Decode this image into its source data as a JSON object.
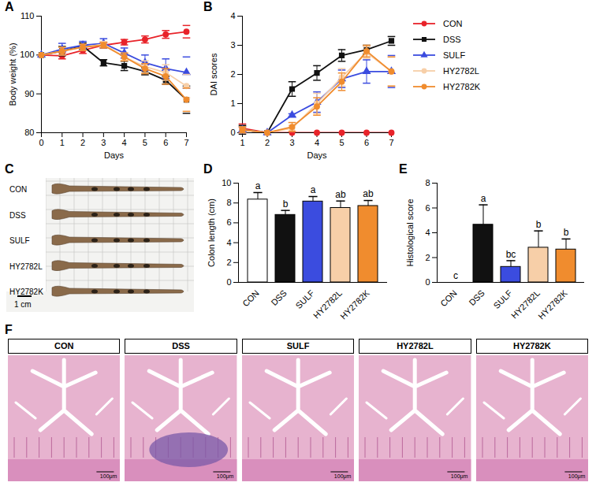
{
  "chart_data": [
    {
      "panel": "A",
      "type": "line",
      "x_label": "Days",
      "y_label": "Body weight (%)",
      "x": [
        0,
        1,
        2,
        3,
        4,
        5,
        6,
        7
      ],
      "xlim": [
        0,
        7
      ],
      "xticks": [
        0,
        1,
        2,
        3,
        4,
        5,
        6,
        7
      ],
      "ylim": [
        80,
        110
      ],
      "yticks": [
        80,
        90,
        100,
        110
      ],
      "series": [
        {
          "name": "CON",
          "color": "#e8232a",
          "marker": "circle",
          "values": [
            100,
            99.8,
            101.2,
            102.5,
            103.3,
            104,
            105.3,
            106
          ],
          "errors": [
            0,
            0.8,
            0.8,
            0.7,
            0.7,
            0.9,
            1.0,
            1.6
          ]
        },
        {
          "name": "DSS",
          "color": "#111111",
          "marker": "square",
          "values": [
            100,
            101,
            102.3,
            98,
            97.2,
            95.8,
            93.5,
            88.5
          ],
          "errors": [
            0,
            1.2,
            0.8,
            0.8,
            1.2,
            0.9,
            1.0,
            3.5
          ]
        },
        {
          "name": "SULF",
          "color": "#3b4cdf",
          "marker": "triangle",
          "values": [
            100,
            101.5,
            102.5,
            103,
            100.5,
            98,
            96.5,
            95.5
          ],
          "errors": [
            0,
            1.5,
            1.0,
            1.2,
            1.3,
            2.0,
            2.5,
            4.0
          ]
        },
        {
          "name": "HY2782L",
          "color": "#f7cfa8",
          "marker": "circle",
          "values": [
            100,
            101,
            102,
            102.8,
            99.5,
            97,
            95.5,
            92
          ],
          "errors": [
            0,
            1.0,
            0.8,
            0.7,
            1.0,
            1.5,
            2.0,
            3.0
          ]
        },
        {
          "name": "HY2782K",
          "color": "#f08c2e",
          "marker": "circle",
          "values": [
            100,
            101,
            102,
            102.5,
            99.5,
            96.5,
            94.5,
            88.5
          ],
          "errors": [
            0,
            1.0,
            0.8,
            0.7,
            1.0,
            1.3,
            2.0,
            3.0
          ]
        }
      ]
    },
    {
      "panel": "B",
      "type": "line",
      "x_label": "Days",
      "y_label": "DAI scores",
      "x": [
        1,
        2,
        3,
        4,
        5,
        6,
        7
      ],
      "xlim": [
        1,
        7
      ],
      "xticks": [
        1,
        2,
        3,
        4,
        5,
        6,
        7
      ],
      "ylim": [
        0,
        4
      ],
      "yticks": [
        0,
        1,
        2,
        3,
        4
      ],
      "legend": "right",
      "series": [
        {
          "name": "CON",
          "color": "#e8232a",
          "marker": "circle",
          "values": [
            0.15,
            0,
            0,
            0,
            0,
            0,
            0
          ],
          "errors": [
            0.15,
            0,
            0,
            0,
            0,
            0,
            0
          ]
        },
        {
          "name": "DSS",
          "color": "#111111",
          "marker": "square",
          "values": [
            0.1,
            0,
            1.5,
            2.05,
            2.65,
            2.85,
            3.15
          ],
          "errors": [
            0.15,
            0,
            0.25,
            0.25,
            0.2,
            0.15,
            0.15
          ]
        },
        {
          "name": "SULF",
          "color": "#3b4cdf",
          "marker": "triangle",
          "values": [
            0.1,
            0,
            0.6,
            1.05,
            1.85,
            2.1,
            2.1
          ],
          "errors": [
            0.1,
            0,
            0.05,
            0.35,
            0.3,
            0.4,
            0.55
          ]
        },
        {
          "name": "HY2782L",
          "color": "#f7cfa8",
          "marker": "circle",
          "values": [
            0.1,
            0,
            0.15,
            1.0,
            1.9,
            2.75,
            2.1
          ],
          "errors": [
            0.1,
            0,
            0.1,
            0.35,
            0.3,
            0.2,
            0.5
          ]
        },
        {
          "name": "HY2782K",
          "color": "#f08c2e",
          "marker": "circle",
          "values": [
            0.1,
            0,
            0.2,
            0.9,
            1.75,
            2.8,
            2.1
          ],
          "errors": [
            0.1,
            0,
            0.15,
            0.3,
            0.3,
            0.2,
            0.5
          ]
        }
      ]
    },
    {
      "panel": "D",
      "type": "bar",
      "y_label": "Colon length (cm)",
      "categories": [
        "CON",
        "DSS",
        "SULF",
        "HY2782L",
        "HY2782K"
      ],
      "values": [
        8.35,
        6.8,
        8.15,
        7.5,
        7.7
      ],
      "errors": [
        0.7,
        0.45,
        0.5,
        0.7,
        0.55
      ],
      "letters": [
        "a",
        "b",
        "a",
        "ab",
        "ab"
      ],
      "colors": [
        "#ffffff",
        "#111111",
        "#3b4cdf",
        "#f7cfa8",
        "#f08c2e"
      ],
      "ylim": [
        0,
        10
      ],
      "yticks": [
        0,
        2,
        4,
        6,
        8,
        10
      ]
    },
    {
      "panel": "E",
      "type": "bar",
      "y_label": "Histological score",
      "categories": [
        "CON",
        "DSS",
        "SULF",
        "HY2782L",
        "HY2782K"
      ],
      "values": [
        0,
        4.65,
        1.25,
        2.8,
        2.65
      ],
      "errors": [
        0,
        1.6,
        0.5,
        1.35,
        0.85
      ],
      "letters": [
        "c",
        "a",
        "bc",
        "b",
        "b"
      ],
      "colors": [
        "#ffffff",
        "#111111",
        "#3b4cdf",
        "#f7cfa8",
        "#f08c2e"
      ],
      "ylim": [
        0,
        8
      ],
      "yticks": [
        0,
        2,
        4,
        6,
        8
      ]
    }
  ],
  "photo_panels": [
    {
      "panel": "C",
      "row_labels": [
        "CON",
        "DSS",
        "SULF",
        "HY2782L",
        "HY2782K"
      ],
      "scale_bar": "1 cm"
    },
    {
      "panel": "F",
      "titles": [
        "CON",
        "DSS",
        "SULF",
        "HY2782L",
        "HY2782K"
      ],
      "scale_bar": "100μm"
    }
  ]
}
